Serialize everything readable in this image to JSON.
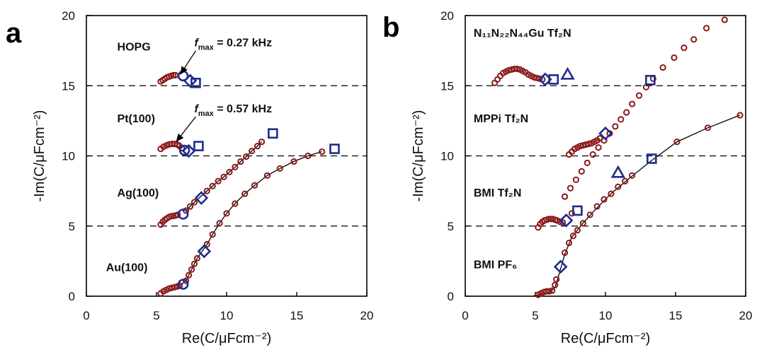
{
  "panel_a": {
    "letter": "a"
  },
  "panel_b": {
    "letter": "b"
  },
  "colors": {
    "data_points": "#8b1a1a",
    "markers": "#1f2c8f",
    "lines": "#000000"
  },
  "chart_data": [
    {
      "type": "scatter",
      "panel": "a",
      "xlabel": "Re(C/μFcm⁻²)",
      "ylabel": "-Im(C/μFcm⁻²)",
      "xlim": [
        0,
        20
      ],
      "ylim": [
        0,
        20
      ],
      "xticks": [
        "0",
        "5",
        "10",
        "15",
        "20"
      ],
      "yticks": [
        "0",
        "5",
        "10",
        "15",
        "20"
      ],
      "hlines": [
        5,
        10,
        15
      ],
      "labels": [
        {
          "text": "HOPG",
          "x": 2.2,
          "y": 17.5
        },
        {
          "text": "Pt(100)",
          "x": 2.2,
          "y": 12.4
        },
        {
          "text": "Ag(100)",
          "x": 2.2,
          "y": 7.1
        },
        {
          "text": "Au(100)",
          "x": 1.4,
          "y": 1.8
        }
      ],
      "annotations": [
        {
          "f": "f",
          "sub": "max",
          "rest": " = 0.27 kHz",
          "x": 7.7,
          "y": 17.8,
          "arrow_to": [
            6.7,
            15.8
          ]
        },
        {
          "f": "f",
          "sub": "max",
          "rest": " = 0.57 kHz",
          "x": 7.7,
          "y": 13.1,
          "arrow_to": [
            6.4,
            11.0
          ]
        }
      ],
      "series": [
        {
          "points": [
            [
              5.3,
              15.3
            ],
            [
              5.45,
              15.4
            ],
            [
              5.6,
              15.5
            ],
            [
              5.75,
              15.6
            ],
            [
              5.9,
              15.65
            ],
            [
              6.05,
              15.7
            ],
            [
              6.2,
              15.75
            ],
            [
              6.35,
              15.75
            ]
          ],
          "markers": [
            {
              "shape": "circle",
              "x": 6.9,
              "y": 15.7
            },
            {
              "shape": "diamond",
              "x": 7.4,
              "y": 15.35
            },
            {
              "shape": "square",
              "x": 7.8,
              "y": 15.2
            }
          ]
        },
        {
          "points": [
            [
              5.3,
              10.5
            ],
            [
              5.5,
              10.65
            ],
            [
              5.7,
              10.75
            ],
            [
              5.9,
              10.82
            ],
            [
              6.1,
              10.85
            ],
            [
              6.3,
              10.85
            ],
            [
              6.5,
              10.8
            ],
            [
              6.65,
              10.7
            ],
            [
              6.8,
              10.55
            ]
          ],
          "markers": [
            {
              "shape": "circle",
              "x": 7.0,
              "y": 10.4
            },
            {
              "shape": "diamond",
              "x": 7.3,
              "y": 10.35
            },
            {
              "shape": "square",
              "x": 8.0,
              "y": 10.7
            }
          ]
        },
        {
          "points": [
            [
              5.3,
              5.1
            ],
            [
              5.45,
              5.3
            ],
            [
              5.6,
              5.45
            ],
            [
              5.75,
              5.55
            ],
            [
              5.9,
              5.65
            ],
            [
              6.05,
              5.7
            ],
            [
              6.2,
              5.72
            ],
            [
              6.35,
              5.75
            ],
            [
              6.5,
              5.8
            ],
            [
              7.1,
              6.1
            ],
            [
              7.4,
              6.4
            ],
            [
              7.7,
              6.7
            ],
            [
              8.6,
              7.5
            ],
            [
              9.0,
              7.85
            ],
            [
              9.4,
              8.2
            ],
            [
              9.8,
              8.5
            ],
            [
              10.2,
              8.85
            ],
            [
              10.6,
              9.2
            ],
            [
              11.0,
              9.6
            ],
            [
              11.4,
              9.95
            ],
            [
              11.8,
              10.35
            ],
            [
              12.2,
              10.7
            ],
            [
              12.5,
              11.0
            ]
          ],
          "markers": [
            {
              "shape": "circle",
              "x": 6.9,
              "y": 5.85
            },
            {
              "shape": "diamond",
              "x": 8.2,
              "y": 7.0
            },
            {
              "shape": "square",
              "x": 13.3,
              "y": 11.6
            }
          ]
        },
        {
          "points": [
            [
              5.3,
              0.2
            ],
            [
              5.5,
              0.35
            ],
            [
              5.7,
              0.45
            ],
            [
              5.9,
              0.55
            ],
            [
              6.1,
              0.6
            ],
            [
              6.3,
              0.65
            ],
            [
              6.5,
              0.7
            ],
            [
              6.65,
              0.75
            ],
            [
              7.1,
              1.1
            ],
            [
              7.3,
              1.5
            ],
            [
              7.5,
              1.9
            ],
            [
              7.7,
              2.3
            ],
            [
              7.9,
              2.7
            ],
            [
              8.6,
              3.7
            ],
            [
              9.0,
              4.4
            ],
            [
              9.5,
              5.2
            ],
            [
              10.0,
              5.9
            ],
            [
              10.6,
              6.6
            ],
            [
              11.3,
              7.3
            ],
            [
              12.0,
              7.9
            ],
            [
              12.9,
              8.6
            ],
            [
              13.8,
              9.1
            ],
            [
              14.8,
              9.6
            ],
            [
              15.8,
              10.0
            ],
            [
              16.8,
              10.3
            ]
          ],
          "markers": [
            {
              "shape": "circle",
              "x": 6.9,
              "y": 0.85
            },
            {
              "shape": "diamond",
              "x": 8.4,
              "y": 3.2
            },
            {
              "shape": "square",
              "x": 17.7,
              "y": 10.5
            }
          ]
        }
      ]
    },
    {
      "type": "scatter",
      "panel": "b",
      "xlabel": "Re(C/μFcm⁻²)",
      "ylabel": "-Im(C/μFcm⁻²)",
      "xlim": [
        0,
        20
      ],
      "ylim": [
        0,
        20
      ],
      "xticks": [
        "0",
        "5",
        "10",
        "15",
        "20"
      ],
      "yticks": [
        "0",
        "5",
        "10",
        "15",
        "20"
      ],
      "hlines": [
        5,
        10,
        15
      ],
      "labels": [
        {
          "text": "N₁₁N₂₂N₄₄Gu Tf₂N",
          "x": 0.6,
          "y": 18.5
        },
        {
          "text": "MPPi Tf₂N",
          "x": 0.6,
          "y": 12.4
        },
        {
          "text": "BMI Tf₂N",
          "x": 0.6,
          "y": 7.1
        },
        {
          "text": "BMI PF₆",
          "x": 0.6,
          "y": 2.0
        }
      ],
      "series": [
        {
          "points": [
            [
              2.1,
              15.2
            ],
            [
              2.3,
              15.45
            ],
            [
              2.5,
              15.7
            ],
            [
              2.7,
              15.9
            ],
            [
              2.9,
              16.0
            ],
            [
              3.1,
              16.1
            ],
            [
              3.3,
              16.15
            ],
            [
              3.5,
              16.2
            ],
            [
              3.7,
              16.2
            ],
            [
              3.9,
              16.15
            ],
            [
              4.1,
              16.05
            ],
            [
              4.3,
              15.95
            ],
            [
              4.5,
              15.8
            ],
            [
              4.7,
              15.7
            ],
            [
              4.9,
              15.6
            ],
            [
              5.1,
              15.55
            ],
            [
              5.3,
              15.5
            ],
            [
              5.5,
              15.45
            ],
            [
              7.1,
              7.1
            ],
            [
              7.5,
              7.7
            ],
            [
              7.9,
              8.3
            ],
            [
              8.3,
              8.9
            ],
            [
              8.7,
              9.5
            ],
            [
              9.1,
              10.1
            ],
            [
              9.5,
              10.6
            ],
            [
              9.9,
              11.1
            ],
            [
              10.3,
              11.6
            ],
            [
              10.7,
              12.1
            ],
            [
              11.1,
              12.6
            ],
            [
              11.5,
              13.1
            ],
            [
              11.9,
              13.7
            ],
            [
              12.4,
              14.3
            ],
            [
              12.9,
              14.9
            ],
            [
              13.4,
              15.5
            ],
            [
              14.1,
              16.3
            ],
            [
              14.9,
              17.0
            ],
            [
              15.6,
              17.7
            ],
            [
              16.3,
              18.3
            ],
            [
              17.2,
              19.1
            ],
            [
              18.5,
              19.7
            ]
          ],
          "markers": [
            {
              "shape": "diamond",
              "x": 5.7,
              "y": 15.45
            },
            {
              "shape": "square",
              "x": 6.3,
              "y": 15.45
            },
            {
              "shape": "triangle",
              "x": 7.3,
              "y": 15.8
            },
            {
              "shape": "square",
              "x": 13.2,
              "y": 15.4
            }
          ]
        },
        {
          "points": [
            [
              7.4,
              10.1
            ],
            [
              7.6,
              10.3
            ],
            [
              7.8,
              10.5
            ],
            [
              8.0,
              10.6
            ],
            [
              8.2,
              10.7
            ],
            [
              8.4,
              10.75
            ],
            [
              8.6,
              10.8
            ],
            [
              8.8,
              10.85
            ],
            [
              9.0,
              10.9
            ],
            [
              9.2,
              11.0
            ],
            [
              9.4,
              11.1
            ],
            [
              9.6,
              11.25
            ]
          ],
          "markers": [
            {
              "shape": "diamond",
              "x": 10.0,
              "y": 11.6
            }
          ]
        },
        {
          "points": [
            [
              5.2,
              4.9
            ],
            [
              5.35,
              5.15
            ],
            [
              5.5,
              5.3
            ],
            [
              5.65,
              5.4
            ],
            [
              5.8,
              5.45
            ],
            [
              5.95,
              5.5
            ],
            [
              6.1,
              5.5
            ],
            [
              6.25,
              5.5
            ],
            [
              6.4,
              5.45
            ],
            [
              6.55,
              5.4
            ],
            [
              6.75,
              5.3
            ],
            [
              6.95,
              5.25
            ],
            [
              7.6,
              5.9
            ]
          ],
          "markers": [
            {
              "shape": "diamond",
              "x": 7.2,
              "y": 5.4
            },
            {
              "shape": "square",
              "x": 8.0,
              "y": 6.1
            },
            {
              "shape": "triangle",
              "x": 10.9,
              "y": 8.8
            }
          ]
        },
        {
          "points": [
            [
              5.2,
              0.1
            ],
            [
              5.4,
              0.2
            ],
            [
              5.6,
              0.3
            ],
            [
              5.8,
              0.35
            ],
            [
              6.0,
              0.35
            ],
            [
              6.2,
              0.4
            ],
            [
              6.4,
              0.8
            ],
            [
              6.5,
              1.2
            ],
            [
              7.1,
              3.1
            ],
            [
              7.4,
              3.8
            ],
            [
              7.7,
              4.3
            ],
            [
              8.0,
              4.7
            ],
            [
              8.4,
              5.2
            ],
            [
              8.9,
              5.8
            ],
            [
              9.4,
              6.4
            ],
            [
              9.9,
              6.9
            ],
            [
              10.4,
              7.3
            ],
            [
              10.9,
              7.8
            ],
            [
              11.4,
              8.2
            ],
            [
              11.9,
              8.6
            ],
            [
              15.1,
              11.0
            ],
            [
              17.3,
              12.0
            ],
            [
              19.6,
              12.9
            ]
          ],
          "markers": [
            {
              "shape": "diamond",
              "x": 6.8,
              "y": 2.1
            },
            {
              "shape": "square",
              "x": 13.3,
              "y": 9.8
            }
          ]
        }
      ],
      "lines": [
        [
          [
            4.9,
            0.05
          ],
          [
            5.5,
            0.15
          ],
          [
            6.0,
            0.3
          ],
          [
            6.4,
            0.6
          ],
          [
            6.7,
            1.6
          ],
          [
            7.1,
            3.0
          ],
          [
            7.6,
            4.2
          ],
          [
            8.3,
            5.1
          ],
          [
            9.3,
            6.2
          ],
          [
            10.5,
            7.4
          ],
          [
            11.7,
            8.4
          ],
          [
            13.2,
            9.6
          ],
          [
            15.1,
            11.0
          ],
          [
            17.3,
            12.0
          ],
          [
            19.6,
            12.9
          ]
        ]
      ]
    }
  ]
}
